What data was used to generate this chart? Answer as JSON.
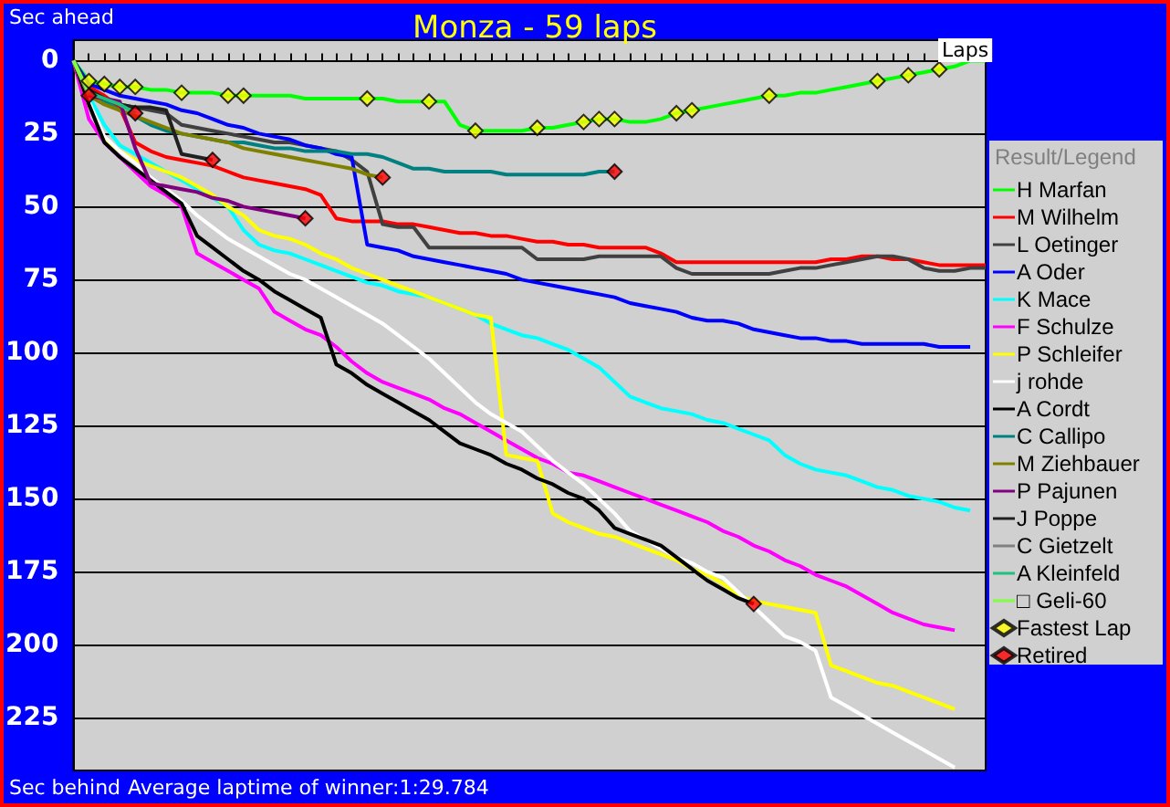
{
  "chart_data": {
    "type": "line",
    "title": "Monza - 59 laps",
    "ylabel": "Sec ahead",
    "xlabel": "Laps",
    "legend_title": "Result/Legend",
    "annotations": [
      "Sec behind",
      "Average laptime of winner:1:29.784"
    ],
    "categories": [
      null,
      null,
      null,
      null,
      null,
      null,
      null,
      null,
      null,
      null,
      null,
      null,
      null,
      null,
      null,
      null,
      null,
      null,
      null,
      null,
      null,
      null,
      null,
      null,
      null,
      null,
      null,
      null,
      null,
      null,
      null,
      null,
      null,
      null,
      null,
      null,
      null,
      null,
      null,
      null,
      null,
      null,
      null,
      null,
      null,
      null,
      null,
      null,
      null,
      null,
      null,
      null,
      null,
      null,
      null,
      null,
      null,
      null,
      null,
      null
    ],
    "ylim": [
      243,
      -7
    ],
    "yticks": [
      0,
      25,
      50,
      75,
      100,
      125,
      150,
      175,
      200,
      225
    ],
    "grid": "y",
    "legend": "right",
    "tick_labels": "y",
    "series": [
      {
        "name": "H Marfan",
        "color": "#00ff00",
        "values": [
          0,
          7,
          8,
          9,
          9,
          10,
          10,
          11,
          11,
          11,
          12,
          12,
          12,
          12,
          12,
          13,
          13,
          13,
          13,
          13,
          13,
          14,
          14,
          14,
          14,
          22,
          24,
          24,
          24,
          24,
          23,
          23,
          22,
          21,
          20,
          20,
          21,
          21,
          20,
          18,
          17,
          16,
          15,
          14,
          13,
          12,
          12,
          11,
          11,
          10,
          9,
          8,
          7,
          6,
          5,
          4,
          3,
          2,
          0,
          0
        ]
      },
      {
        "name": "M Wilhelm",
        "color": "#ff0000",
        "values": [
          0,
          9,
          12,
          16,
          28,
          31,
          33,
          34,
          35,
          36,
          38,
          40,
          41,
          42,
          43,
          44,
          46,
          54,
          55,
          55,
          55,
          56,
          56,
          57,
          58,
          59,
          59,
          60,
          60,
          61,
          62,
          62,
          63,
          63,
          64,
          64,
          64,
          64,
          66,
          69,
          69,
          69,
          69,
          69,
          69,
          69,
          69,
          69,
          69,
          68,
          68,
          67,
          67,
          68,
          68,
          69,
          70,
          70,
          70,
          70
        ]
      },
      {
        "name": "L Oetinger",
        "color": "#404040",
        "values": [
          0,
          10,
          13,
          15,
          16,
          17,
          18,
          22,
          23,
          24,
          25,
          26,
          27,
          28,
          28,
          29,
          30,
          31,
          34,
          38,
          56,
          57,
          57,
          64,
          64,
          64,
          64,
          64,
          64,
          64,
          68,
          68,
          68,
          68,
          67,
          67,
          67,
          67,
          67,
          71,
          73,
          73,
          73,
          73,
          73,
          73,
          72,
          71,
          71,
          70,
          69,
          68,
          67,
          67,
          68,
          71,
          72,
          72,
          71,
          71
        ]
      },
      {
        "name": "A Oder",
        "color": "#0000ff",
        "values": [
          0,
          8,
          10,
          12,
          13,
          14,
          15,
          17,
          18,
          20,
          22,
          23,
          25,
          26,
          27,
          29,
          30,
          32,
          33,
          63,
          64,
          65,
          67,
          68,
          69,
          70,
          71,
          72,
          73,
          75,
          76,
          77,
          78,
          79,
          80,
          81,
          83,
          84,
          85,
          86,
          88,
          89,
          89,
          90,
          92,
          93,
          94,
          95,
          95,
          96,
          96,
          97,
          97,
          97,
          97,
          97,
          98,
          98,
          98,
          null
        ]
      },
      {
        "name": "K Mace",
        "color": "#00ffff",
        "values": [
          0,
          12,
          22,
          29,
          32,
          35,
          38,
          41,
          44,
          47,
          50,
          58,
          63,
          65,
          66,
          68,
          70,
          72,
          74,
          76,
          77,
          79,
          80,
          81,
          83,
          85,
          87,
          90,
          92,
          94,
          95,
          97,
          99,
          102,
          105,
          110,
          115,
          117,
          119,
          120,
          121,
          123,
          124,
          126,
          128,
          130,
          135,
          138,
          140,
          141,
          142,
          144,
          146,
          147,
          149,
          150,
          151,
          153,
          154,
          null
        ]
      },
      {
        "name": "F Schulze",
        "color": "#ff00ff",
        "values": [
          0,
          20,
          28,
          33,
          38,
          43,
          46,
          50,
          66,
          69,
          72,
          75,
          78,
          86,
          89,
          92,
          94,
          98,
          103,
          107,
          110,
          112,
          114,
          116,
          119,
          121,
          124,
          127,
          130,
          133,
          136,
          138,
          141,
          142,
          144,
          146,
          148,
          150,
          152,
          154,
          156,
          158,
          161,
          163,
          166,
          168,
          171,
          173,
          176,
          178,
          180,
          183,
          186,
          189,
          191,
          193,
          194,
          195,
          null,
          null
        ]
      },
      {
        "name": "P Schleifer",
        "color": "#ffff00",
        "values": [
          0,
          15,
          27,
          31,
          34,
          36,
          38,
          40,
          43,
          46,
          50,
          53,
          58,
          60,
          61,
          63,
          66,
          68,
          71,
          73,
          75,
          77,
          79,
          81,
          83,
          85,
          87,
          88,
          135,
          136,
          137,
          155,
          158,
          160,
          162,
          163,
          165,
          167,
          169,
          171,
          174,
          176,
          179,
          183,
          185,
          186,
          187,
          188,
          189,
          207,
          209,
          211,
          213,
          214,
          216,
          218,
          220,
          222,
          null,
          null
        ]
      },
      {
        "name": "j rohde",
        "color": "#ffffff",
        "values": [
          0,
          14,
          26,
          31,
          35,
          40,
          44,
          48,
          53,
          57,
          61,
          64,
          67,
          70,
          73,
          75,
          78,
          81,
          84,
          87,
          90,
          94,
          98,
          102,
          107,
          112,
          117,
          121,
          124,
          127,
          132,
          137,
          141,
          145,
          150,
          155,
          161,
          164,
          167,
          170,
          172,
          175,
          177,
          182,
          187,
          192,
          197,
          199,
          202,
          218,
          221,
          224,
          227,
          230,
          233,
          236,
          239,
          242,
          null,
          null
        ]
      },
      {
        "name": "A Cordt",
        "color": "#000000",
        "values": [
          0,
          15,
          28,
          33,
          37,
          41,
          45,
          49,
          60,
          64,
          68,
          72,
          75,
          79,
          82,
          85,
          88,
          104,
          107,
          111,
          114,
          117,
          120,
          123,
          127,
          131,
          133,
          135,
          138,
          140,
          143,
          145,
          148,
          150,
          154,
          160,
          162,
          164,
          166,
          170,
          174,
          178,
          181,
          184,
          186,
          null,
          null,
          null,
          null,
          null,
          null,
          null,
          null,
          null,
          null,
          null,
          null,
          null,
          null,
          null
        ]
      },
      {
        "name": "C Callipo",
        "color": "#008080",
        "values": [
          0,
          10,
          14,
          17,
          19,
          22,
          24,
          25,
          26,
          27,
          28,
          28,
          29,
          30,
          30,
          31,
          31,
          31,
          32,
          32,
          33,
          35,
          37,
          37,
          38,
          38,
          38,
          38,
          39,
          39,
          39,
          39,
          39,
          39,
          38,
          38,
          null,
          null,
          null,
          null,
          null,
          null,
          null,
          null,
          null,
          null,
          null,
          null,
          null,
          null,
          null,
          null,
          null,
          null,
          null,
          null,
          null,
          null,
          null,
          null
        ]
      },
      {
        "name": "M Ziehbauer",
        "color": "#808000",
        "values": [
          0,
          12,
          15,
          17,
          19,
          21,
          23,
          25,
          26,
          27,
          28,
          30,
          31,
          32,
          33,
          34,
          35,
          36,
          37,
          39,
          40,
          null,
          null,
          null,
          null,
          null,
          null,
          null,
          null,
          null,
          null,
          null,
          null,
          null,
          null,
          null,
          null,
          null,
          null,
          null,
          null,
          null,
          null,
          null,
          null,
          null,
          null,
          null,
          null,
          null,
          null,
          null,
          null,
          null,
          null,
          null,
          null,
          null,
          null,
          null
        ]
      },
      {
        "name": "P Pajunen",
        "color": "#800080",
        "values": [
          0,
          12,
          13,
          14,
          30,
          42,
          43,
          44,
          45,
          47,
          48,
          50,
          51,
          52,
          53,
          54,
          null,
          null,
          null,
          null,
          null,
          null,
          null,
          null,
          null,
          null,
          null,
          null,
          null,
          null,
          null,
          null,
          null,
          null,
          null,
          null,
          null,
          null,
          null,
          null,
          null,
          null,
          null,
          null,
          null,
          null,
          null,
          null,
          null,
          null,
          null,
          null,
          null,
          null,
          null,
          null,
          null,
          null,
          null,
          null
        ]
      },
      {
        "name": "J Poppe",
        "color": "#202020",
        "values": [
          0,
          10,
          13,
          15,
          16,
          16,
          17,
          32,
          33,
          34,
          null,
          null,
          null,
          null,
          null,
          null,
          null,
          null,
          null,
          null,
          null,
          null,
          null,
          null,
          null,
          null,
          null,
          null,
          null,
          null,
          null,
          null,
          null,
          null,
          null,
          null,
          null,
          null,
          null,
          null,
          null,
          null,
          null,
          null,
          null,
          null,
          null,
          null,
          null,
          null,
          null,
          null,
          null,
          null,
          null,
          null,
          null,
          null,
          null,
          null
        ]
      },
      {
        "name": "C Gietzelt",
        "color": "#808080",
        "values": [
          0,
          12,
          null,
          null,
          null,
          null,
          null,
          null,
          null,
          null,
          null,
          null,
          null,
          null,
          null,
          null,
          null,
          null,
          null,
          null,
          null,
          null,
          null,
          null,
          null,
          null,
          null,
          null,
          null,
          null,
          null,
          null,
          null,
          null,
          null,
          null,
          null,
          null,
          null,
          null,
          null,
          null,
          null,
          null,
          null,
          null,
          null,
          null,
          null,
          null,
          null,
          null,
          null,
          null,
          null,
          null,
          null,
          null,
          null,
          null
        ]
      },
      {
        "name": "A Kleinfeld",
        "color": "#20c080",
        "values": [
          null,
          11,
          13,
          15,
          18,
          null,
          null,
          null,
          null,
          null,
          null,
          null,
          null,
          null,
          null,
          null,
          null,
          null,
          null,
          null,
          null,
          null,
          null,
          null,
          null,
          null,
          null,
          null,
          null,
          null,
          null,
          null,
          null,
          null,
          null,
          null,
          null,
          null,
          null,
          null,
          null,
          null,
          null,
          null,
          null,
          null,
          null,
          null,
          null,
          null,
          null,
          null,
          null,
          null,
          null,
          null,
          null,
          null,
          null,
          null
        ]
      },
      {
        "name": "□ Geli-60",
        "color": "#80ff40",
        "values": [
          0,
          11,
          null,
          null,
          null,
          null,
          null,
          null,
          null,
          null,
          null,
          null,
          null,
          null,
          null,
          null,
          null,
          null,
          null,
          null,
          null,
          null,
          null,
          null,
          null,
          null,
          null,
          null,
          null,
          null,
          null,
          null,
          null,
          null,
          null,
          null,
          null,
          null,
          null,
          null,
          null,
          null,
          null,
          null,
          null,
          null,
          null,
          null,
          null,
          null,
          null,
          null,
          null,
          null,
          null,
          null,
          null,
          null,
          null,
          null
        ]
      },
      {
        "name": "Fastest Lap",
        "type": "scatter",
        "marker": "diamond",
        "color": "#ffff00",
        "values": [
          null,
          7,
          8,
          9,
          9,
          null,
          null,
          11,
          null,
          null,
          12,
          12,
          null,
          null,
          null,
          null,
          null,
          null,
          null,
          13,
          null,
          null,
          null,
          14,
          null,
          null,
          24,
          null,
          null,
          null,
          23,
          null,
          null,
          21,
          20,
          20,
          null,
          null,
          null,
          18,
          17,
          null,
          null,
          null,
          null,
          12,
          null,
          null,
          null,
          null,
          null,
          null,
          7,
          null,
          5,
          null,
          3,
          null,
          null,
          null
        ]
      },
      {
        "name": "Retired",
        "type": "scatter",
        "marker": "diamond",
        "color": "#ff0000",
        "values": [
          null,
          12,
          null,
          null,
          18,
          null,
          null,
          null,
          null,
          34,
          null,
          null,
          null,
          null,
          null,
          54,
          null,
          null,
          null,
          null,
          40,
          null,
          null,
          null,
          null,
          null,
          null,
          null,
          null,
          null,
          null,
          null,
          null,
          null,
          null,
          38,
          null,
          null,
          null,
          null,
          null,
          null,
          null,
          null,
          186,
          null,
          null,
          null,
          null,
          null,
          null,
          null,
          null,
          null,
          null,
          null,
          null,
          null,
          null,
          null
        ]
      }
    ]
  }
}
